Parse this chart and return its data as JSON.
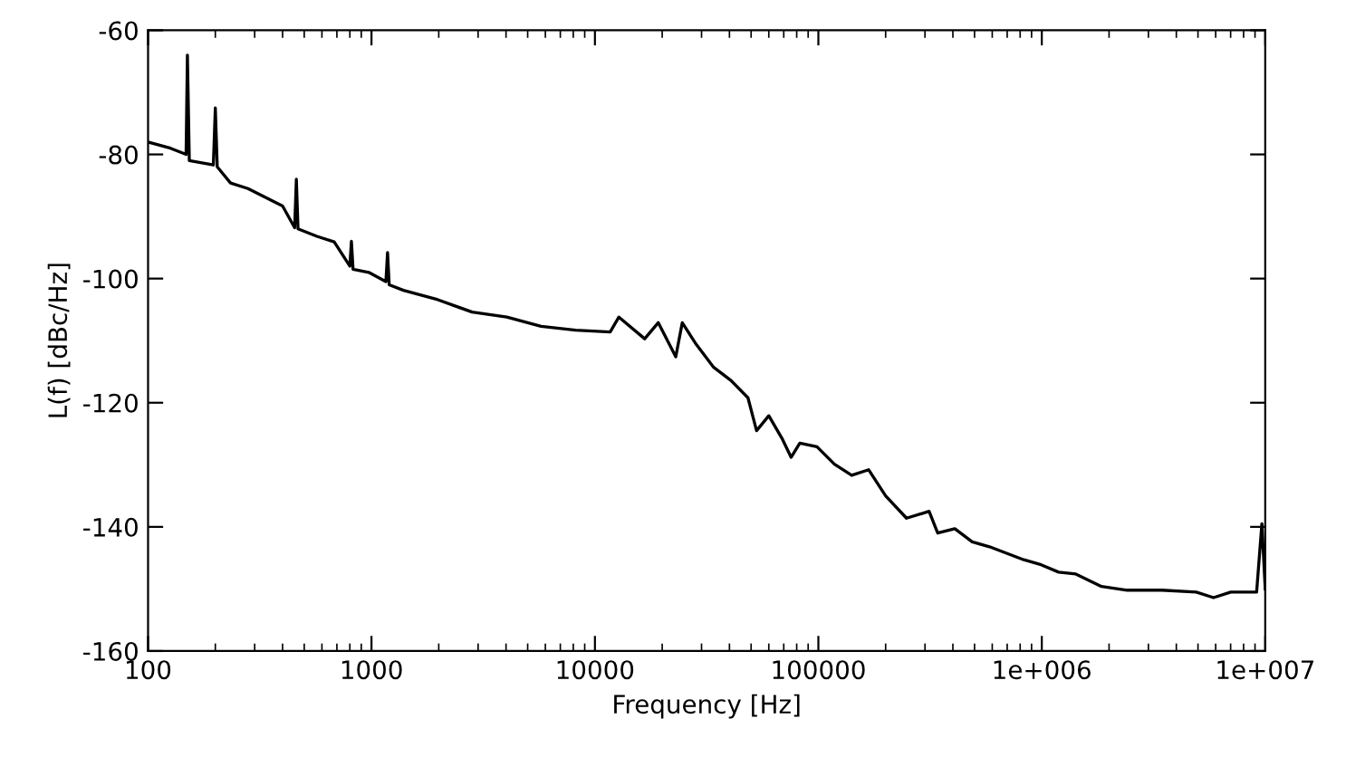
{
  "chart_data": {
    "type": "line",
    "xlabel": "Frequency [Hz]",
    "ylabel": "L(f) [dBc/Hz]",
    "log": "x",
    "grid": false,
    "marker": "none",
    "line_style": "solid",
    "xlim": [
      100,
      10000000
    ],
    "xticks": [
      100,
      1000,
      10000,
      100000,
      {
        "value": 1000000,
        "label": "1e+006"
      },
      {
        "value": 10000000,
        "label": "1e+007"
      }
    ],
    "ylim": [
      -160,
      -60
    ],
    "yticks": [
      -160,
      -140,
      -120,
      -100,
      -80,
      -60
    ],
    "series": [
      {
        "color": "#000000",
        "x": [
          100,
          126,
          148,
          150,
          153,
          196,
          200,
          204,
          234,
          280,
          400,
          453,
          461,
          469,
          570,
          681,
          800,
          813,
          827,
          972,
          1160,
          1180,
          1200,
          1390,
          1980,
          2820,
          4030,
          5740,
          8200,
          11700,
          12800,
          16700,
          19200,
          23000,
          24600,
          28400,
          34000,
          40600,
          48400,
          52900,
          60000,
          69100,
          75500,
          82600,
          98600,
          118000,
          141000,
          168000,
          200000,
          248000,
          313000,
          342000,
          408000,
          488000,
          583000,
          831000,
          993000,
          1190000,
          1420000,
          1850000,
          2410000,
          3440000,
          4910000,
          5870000,
          7010000,
          9150000,
          9660000,
          10000000
        ],
        "values": [
          -78,
          -79,
          -80,
          -64,
          -81,
          -81.7,
          -72.5,
          -82,
          -84.6,
          -85.5,
          -88.3,
          -91.8,
          -84,
          -92,
          -93.2,
          -94.1,
          -98,
          -94,
          -98.5,
          -99,
          -100.5,
          -95.8,
          -101,
          -101.9,
          -103.4,
          -105.4,
          -106.2,
          -107.7,
          -108.3,
          -108.6,
          -106.2,
          -109.7,
          -107.1,
          -112.6,
          -107.1,
          -110.6,
          -114.3,
          -116.4,
          -119.2,
          -124.5,
          -122.1,
          -125.9,
          -128.8,
          -126.5,
          -127.1,
          -129.9,
          -131.7,
          -130.8,
          -135,
          -138.6,
          -137.5,
          -141,
          -140.3,
          -142.4,
          -143.2,
          -145.3,
          -146.1,
          -147.3,
          -147.6,
          -149.6,
          -150.2,
          -150.2,
          -150.5,
          -151.4,
          -150.5,
          -150.5,
          -139.5,
          -150
        ]
      }
    ]
  }
}
